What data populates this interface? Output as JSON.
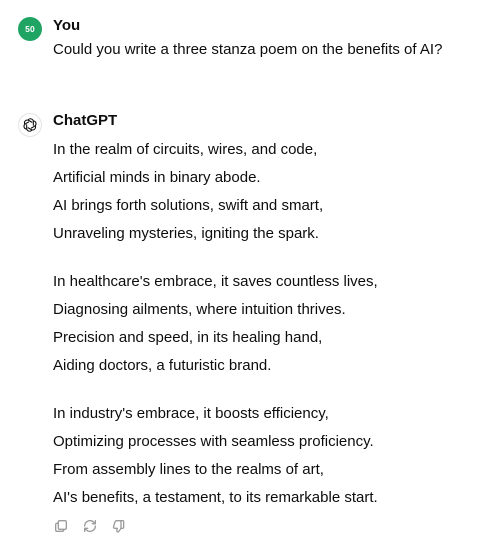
{
  "user_message": {
    "avatar_initials": "50",
    "author": "You",
    "text": "Could you write a three stanza poem on the benefits of AI?"
  },
  "assistant_message": {
    "author": "ChatGPT",
    "avatar_icon": "openai-logo-icon",
    "stanzas": [
      [
        "In the realm of circuits, wires, and code,",
        "Artificial minds in binary abode.",
        "AI brings forth solutions, swift and smart,",
        "Unraveling mysteries, igniting the spark."
      ],
      [
        "In healthcare's embrace, it saves countless lives,",
        "Diagnosing ailments, where intuition thrives.",
        "Precision and speed, in its healing hand,",
        "Aiding doctors, a futuristic brand."
      ],
      [
        "In industry's embrace, it boosts efficiency,",
        "Optimizing processes with seamless proficiency.",
        "From assembly lines to the realms of art,",
        "AI's benefits, a testament, to its remarkable start."
      ]
    ]
  },
  "actions": [
    {
      "name": "copy-button",
      "icon": "copy-icon"
    },
    {
      "name": "regenerate-button",
      "icon": "regenerate-icon"
    },
    {
      "name": "thumbs-down-button",
      "icon": "thumbs-down-icon"
    }
  ],
  "colors": {
    "user_avatar_bg": "#1fa463",
    "text": "#0d0d0d",
    "icon": "#9b9b9b"
  }
}
